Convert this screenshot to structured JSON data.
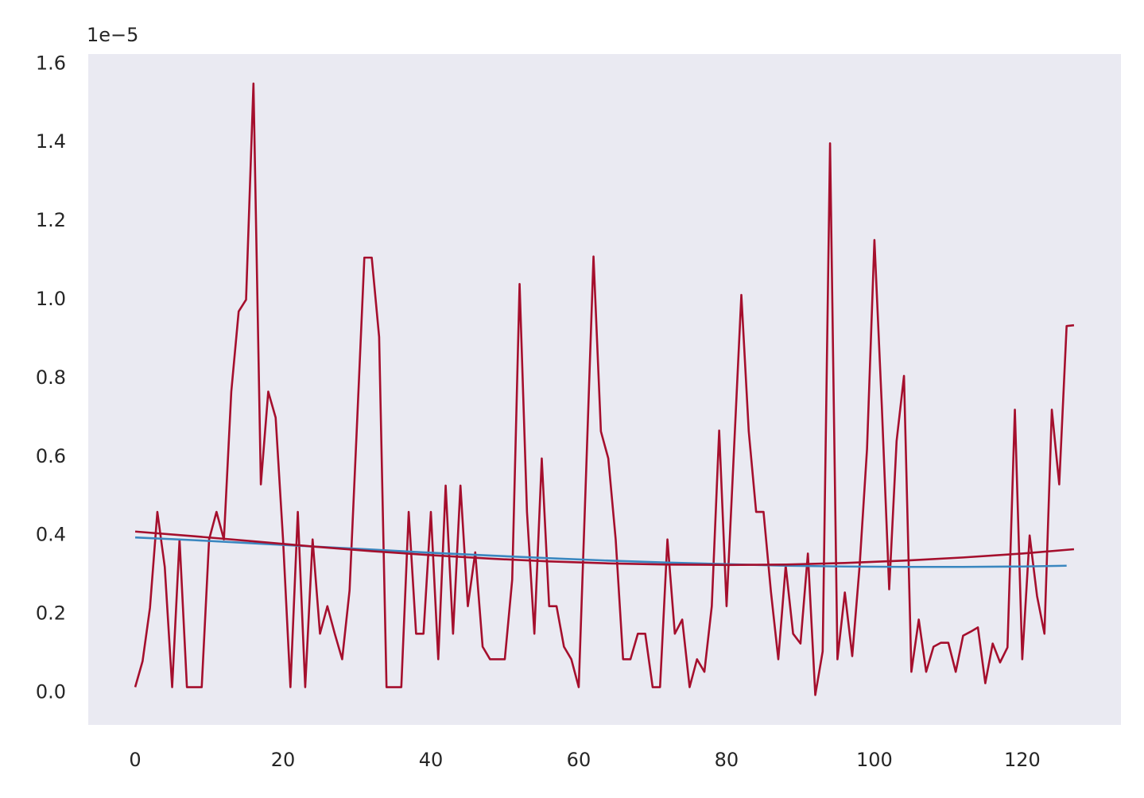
{
  "chart_data": {
    "type": "line",
    "offset_label": "1e−5",
    "xlim": [
      -6.35,
      133.35
    ],
    "ylim": [
      -0.082,
      1.625
    ],
    "xticks": [
      0,
      20,
      40,
      60,
      80,
      100,
      120
    ],
    "yticks": [
      {
        "value": 0,
        "label": "0.0"
      },
      0.2,
      0.4,
      0.6,
      0.8,
      {
        "value": 1,
        "label": "1.0"
      },
      1.2,
      1.4,
      1.6
    ],
    "grid": false,
    "background": "#eaeaf2",
    "series": [
      {
        "color": "#a50f2d",
        "x": [
          0,
          1,
          2,
          3,
          4,
          5,
          6,
          7,
          8,
          9,
          10,
          11,
          12,
          13,
          14,
          15,
          16,
          17,
          18,
          19,
          20,
          21,
          22,
          23,
          24,
          25,
          26,
          27,
          28,
          29,
          30,
          31,
          32,
          33,
          34,
          35,
          36,
          37,
          38,
          39,
          40,
          41,
          42,
          43,
          44,
          45,
          46,
          47,
          48,
          49,
          50,
          51,
          52,
          53,
          54,
          55,
          56,
          57,
          58,
          59,
          60,
          61,
          62,
          63,
          64,
          65,
          66,
          67,
          68,
          69,
          70,
          71,
          72,
          73,
          74,
          75,
          76,
          77,
          78,
          79,
          80,
          81,
          82,
          83,
          84,
          85,
          86,
          87,
          88,
          89,
          90,
          91,
          92,
          93,
          94,
          95,
          96,
          97,
          98,
          99,
          100,
          101,
          102,
          103,
          104,
          105,
          106,
          107,
          108,
          109,
          110,
          111,
          112,
          113,
          114,
          115,
          116,
          117,
          118,
          119,
          120,
          121,
          122,
          123,
          124,
          125,
          126,
          127
        ],
        "values": [
          0.014,
          0.08,
          0.216,
          0.46,
          0.32,
          0.014,
          0.39,
          0.014,
          0.014,
          0.014,
          0.39,
          0.46,
          0.39,
          0.766,
          0.97,
          1.0,
          1.55,
          0.53,
          0.766,
          0.7,
          0.39,
          0.014,
          0.46,
          0.014,
          0.39,
          0.15,
          0.22,
          0.15,
          0.085,
          0.26,
          0.68,
          1.107,
          1.107,
          0.905,
          0.014,
          0.014,
          0.014,
          0.46,
          0.15,
          0.15,
          0.46,
          0.085,
          0.527,
          0.15,
          0.527,
          0.22,
          0.357,
          0.117,
          0.085,
          0.085,
          0.085,
          0.287,
          1.04,
          0.46,
          0.15,
          0.596,
          0.22,
          0.22,
          0.117,
          0.085,
          0.014,
          0.56,
          1.11,
          0.665,
          0.596,
          0.39,
          0.085,
          0.085,
          0.15,
          0.15,
          0.014,
          0.014,
          0.39,
          0.15,
          0.186,
          0.014,
          0.085,
          0.053,
          0.22,
          0.667,
          0.22,
          0.616,
          1.012,
          0.665,
          0.46,
          0.46,
          0.257,
          0.085,
          0.323,
          0.15,
          0.125,
          0.354,
          -0.006,
          0.105,
          1.398,
          0.085,
          0.255,
          0.093,
          0.323,
          0.62,
          1.152,
          0.73,
          0.263,
          0.64,
          0.806,
          0.053,
          0.186,
          0.053,
          0.117,
          0.127,
          0.127,
          0.053,
          0.145,
          0.155,
          0.166,
          0.024,
          0.125,
          0.077,
          0.115,
          0.72,
          0.085,
          0.4,
          0.246,
          0.15,
          0.72,
          0.53,
          0.933,
          0.935
        ]
      },
      {
        "color": "#3a87c0",
        "x": [
          0,
          8,
          16,
          24,
          32,
          40,
          48,
          56,
          64,
          72,
          80,
          88,
          96,
          104,
          112,
          120,
          126
        ],
        "values": [
          0.395,
          0.388,
          0.38,
          0.372,
          0.364,
          0.356,
          0.349,
          0.342,
          0.336,
          0.331,
          0.327,
          0.323,
          0.321,
          0.32,
          0.32,
          0.321,
          0.323
        ]
      },
      {
        "color": "#a50f2d",
        "x": [
          0,
          8,
          16,
          24,
          32,
          40,
          48,
          56,
          64,
          72,
          80,
          88,
          96,
          104,
          112,
          120,
          127
        ],
        "values": [
          0.41,
          0.398,
          0.385,
          0.372,
          0.36,
          0.35,
          0.341,
          0.334,
          0.329,
          0.326,
          0.325,
          0.326,
          0.33,
          0.336,
          0.344,
          0.354,
          0.365
        ]
      }
    ]
  }
}
